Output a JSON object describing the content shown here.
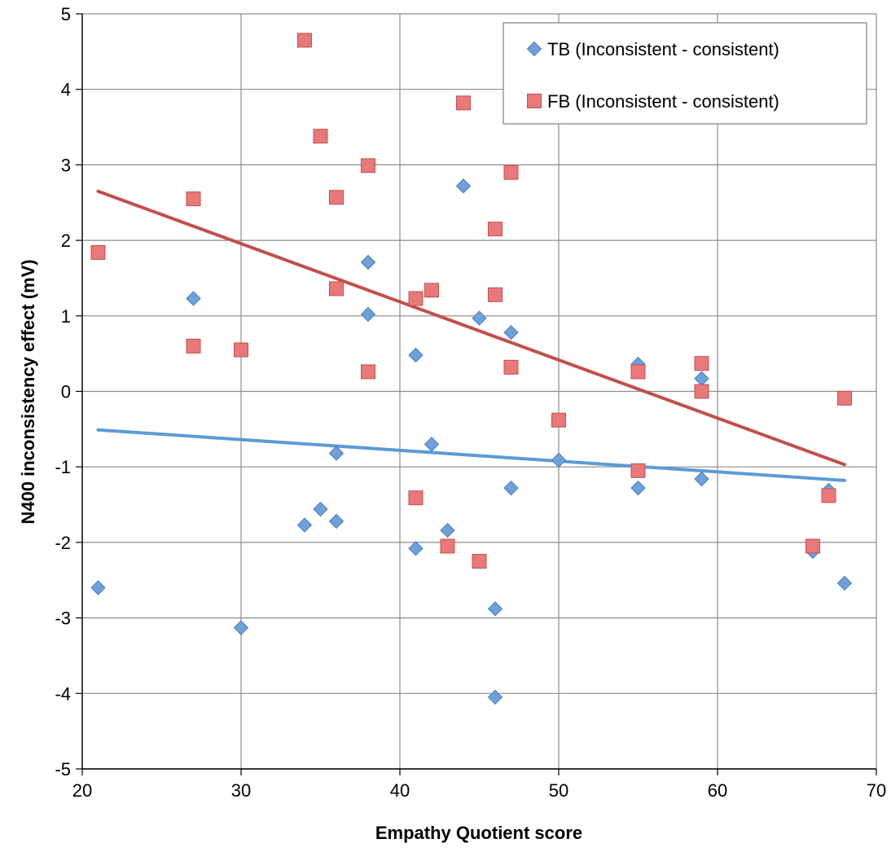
{
  "chart_data": {
    "type": "scatter",
    "xlabel": "Empathy Quotient score",
    "ylabel": "N400 inconsistency effect (mV)",
    "xlim": [
      20,
      70
    ],
    "ylim": [
      -5,
      5
    ],
    "xticks": [
      20,
      30,
      40,
      50,
      60,
      70
    ],
    "yticks": [
      -5,
      -4,
      -3,
      -2,
      -1,
      0,
      1,
      2,
      3,
      4,
      5
    ],
    "grid": true,
    "legend_position": "top-right",
    "series": [
      {
        "name": "TB (Inconsistent - consistent)",
        "marker": "diamond",
        "color": "#6fa0d8",
        "edge_color": "#4a7fbf",
        "line_color": "#5b9bd5",
        "points": [
          [
            21,
            -2.6
          ],
          [
            27,
            1.23
          ],
          [
            27,
            0.6
          ],
          [
            30,
            -3.13
          ],
          [
            34,
            -1.77
          ],
          [
            35,
            -1.56
          ],
          [
            36,
            -0.82
          ],
          [
            36,
            -1.72
          ],
          [
            38,
            1.71
          ],
          [
            38,
            1.02
          ],
          [
            41,
            0.48
          ],
          [
            41,
            -2.08
          ],
          [
            42,
            -0.7
          ],
          [
            43,
            -1.84
          ],
          [
            44,
            2.72
          ],
          [
            45,
            0.97
          ],
          [
            46,
            -2.88
          ],
          [
            46,
            -4.05
          ],
          [
            47,
            0.78
          ],
          [
            47,
            -1.28
          ],
          [
            50,
            -0.91
          ],
          [
            55,
            0.36
          ],
          [
            55,
            -1.28
          ],
          [
            59,
            0.17
          ],
          [
            59,
            -1.16
          ],
          [
            66,
            -2.12
          ],
          [
            67,
            -1.31
          ],
          [
            68,
            -2.54
          ]
        ],
        "trendline": [
          [
            21,
            -0.51
          ],
          [
            68,
            -1.18
          ]
        ]
      },
      {
        "name": "FB (Inconsistent - consistent)",
        "marker": "square",
        "color": "#e8797a",
        "edge_color": "#c55050",
        "line_color": "#c0504d",
        "points": [
          [
            21,
            1.84
          ],
          [
            27,
            2.55
          ],
          [
            27,
            0.6
          ],
          [
            30,
            0.55
          ],
          [
            34,
            4.65
          ],
          [
            35,
            3.38
          ],
          [
            36,
            2.57
          ],
          [
            36,
            1.36
          ],
          [
            38,
            2.99
          ],
          [
            38,
            0.26
          ],
          [
            41,
            1.23
          ],
          [
            41,
            -1.41
          ],
          [
            42,
            1.34
          ],
          [
            43,
            -2.05
          ],
          [
            44,
            3.82
          ],
          [
            45,
            -2.25
          ],
          [
            46,
            2.15
          ],
          [
            46,
            1.28
          ],
          [
            47,
            2.9
          ],
          [
            47,
            0.32
          ],
          [
            50,
            -0.38
          ],
          [
            55,
            0.26
          ],
          [
            55,
            -1.05
          ],
          [
            59,
            0.37
          ],
          [
            59,
            0.0
          ],
          [
            66,
            -2.05
          ],
          [
            67,
            -1.38
          ],
          [
            68,
            -0.09
          ]
        ],
        "trendline": [
          [
            21,
            2.65
          ],
          [
            68,
            -0.97
          ]
        ]
      }
    ]
  }
}
